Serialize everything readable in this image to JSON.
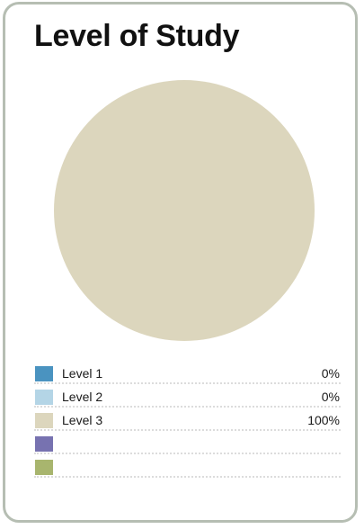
{
  "chart_data": {
    "type": "pie",
    "title": "Level of Study",
    "slices": [
      {
        "label": "Level 1",
        "value": 0,
        "display": "0%",
        "color": "#4a93c0"
      },
      {
        "label": "Level 2",
        "value": 0,
        "display": "0%",
        "color": "#b4d5e6"
      },
      {
        "label": "Level 3",
        "value": 100,
        "display": "100%",
        "color": "#dcd6bd"
      },
      {
        "label": "",
        "value": null,
        "display": "",
        "color": "#7772b0"
      },
      {
        "label": "",
        "value": null,
        "display": "",
        "color": "#a8b56e"
      }
    ],
    "legend_position": "bottom"
  }
}
